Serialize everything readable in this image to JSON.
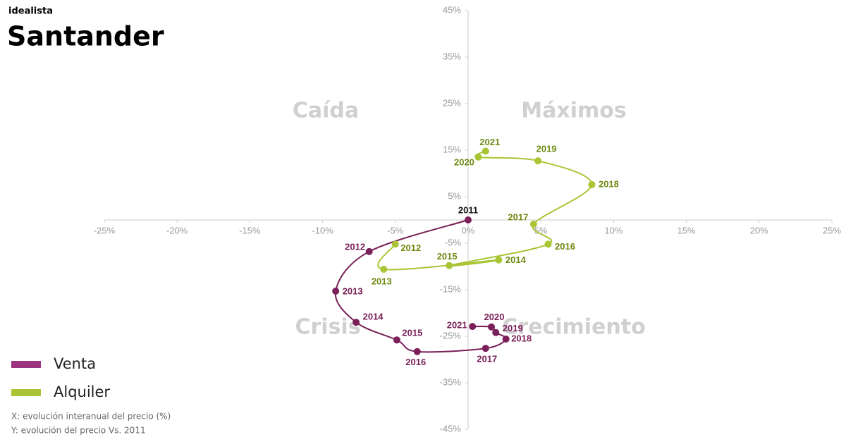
{
  "brand": "idealista",
  "chart_data": {
    "type": "scatter",
    "title": "Santander",
    "quadrant_labels": [
      "Caída",
      "Máximos",
      "Crisis",
      "Crecimiento"
    ],
    "notes": [
      "X: evolución interanual del precio (%)",
      "Y: evolución del precio Vs. 2011"
    ],
    "xlim": [
      -25,
      25
    ],
    "ylim": [
      -45,
      45
    ],
    "xticks": [
      {
        "value": -25,
        "label": "-25%"
      },
      {
        "value": -20,
        "label": "-20%"
      },
      {
        "value": -15,
        "label": "-15%"
      },
      {
        "value": -10,
        "label": "-10%"
      },
      {
        "value": -5,
        "label": "-5%"
      },
      {
        "value": 0,
        "label": "0%"
      },
      {
        "value": 5,
        "label": "5%"
      },
      {
        "value": 10,
        "label": "10%"
      },
      {
        "value": 15,
        "label": "15%"
      },
      {
        "value": 20,
        "label": "20%"
      },
      {
        "value": 25,
        "label": "25%"
      }
    ],
    "yticks": [
      {
        "value": 45,
        "label": "45%"
      },
      {
        "value": 35,
        "label": "35%"
      },
      {
        "value": 25,
        "label": "25%"
      },
      {
        "value": 15,
        "label": "15%"
      },
      {
        "value": 5,
        "label": "5%"
      },
      {
        "value": -5,
        "label": "-5%"
      },
      {
        "value": -15,
        "label": "-15%"
      },
      {
        "value": -25,
        "label": "-25%"
      },
      {
        "value": -35,
        "label": "-35%"
      },
      {
        "value": -45,
        "label": "-45%"
      }
    ],
    "series": [
      {
        "name": "Venta",
        "color": "#7a1f58",
        "legend_color": "#9c3580",
        "labels": [
          "2011",
          "2012",
          "2013",
          "2014",
          "2015",
          "2016",
          "2017",
          "2018",
          "2019",
          "2020",
          "2021"
        ],
        "x": [
          0,
          -6.8,
          -9.1,
          -7.7,
          -4.9,
          -3.5,
          1.2,
          2.6,
          1.9,
          1.6,
          0.3
        ],
        "values": [
          0,
          -6.8,
          -15.3,
          -22,
          -25.8,
          -28.3,
          -27.6,
          -25.6,
          -24.2,
          -23,
          -22.9
        ]
      },
      {
        "name": "Alquiler",
        "color": "#a9c535",
        "label_color": "#6f8a12",
        "labels": [
          "2012",
          "2013",
          "2014",
          "2015",
          "2016",
          "2017",
          "2018",
          "2019",
          "2020",
          "2021"
        ],
        "x": [
          -5.0,
          -5.8,
          2.1,
          -1.3,
          5.5,
          4.5,
          8.5,
          4.8,
          0.7,
          1.2
        ],
        "values": [
          -5.2,
          -10.6,
          -8.6,
          -9.8,
          -5.2,
          -0.9,
          7.6,
          12.7,
          13.5,
          14.8
        ]
      }
    ]
  }
}
